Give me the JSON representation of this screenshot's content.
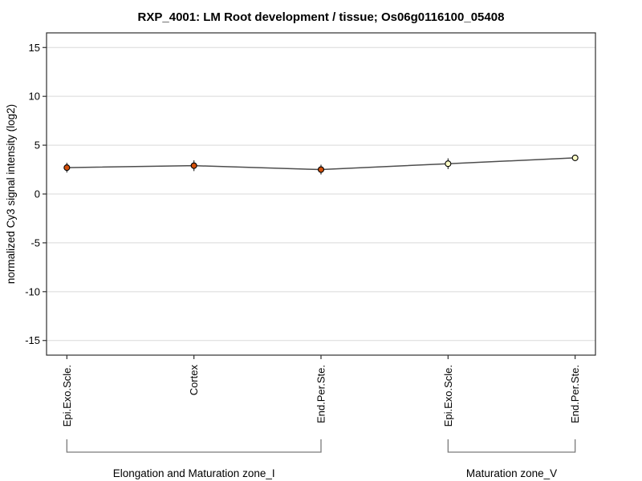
{
  "chart_data": {
    "type": "line",
    "title": "RXP_4001: LM Root development / tissue; Os06g0116100_05408",
    "ylabel": "normalized Cy3 signal intensity (log2)",
    "xlabel": "",
    "categories": [
      "Epi.Exo.Scle.",
      "Cortex",
      "End.Per.Ste.",
      "Epi.Exo.Scle.",
      "End.Per.Ste."
    ],
    "values": [
      2.7,
      2.9,
      2.5,
      3.1,
      3.7
    ],
    "errors": [
      0.5,
      0.55,
      0.5,
      0.55,
      0.15
    ],
    "point_fill_colors": [
      "#d4500a",
      "#d4500a",
      "#d4500a",
      "#ffffc8",
      "#ffffc8"
    ],
    "groups": [
      {
        "label": "Elongation and Maturation zone_I",
        "start": 0,
        "end": 2
      },
      {
        "label": "Maturation zone_V",
        "start": 3,
        "end": 4
      }
    ],
    "yticks": [
      15,
      10,
      5,
      0,
      -5,
      -10,
      -15
    ],
    "ylim": [
      -16.5,
      16.5
    ],
    "grid": true,
    "legend": "none",
    "colors": {
      "line": "#4d4d4d",
      "grid": "#d9d9d9",
      "box": "#2e2e2e",
      "tick": "#2e2e2e",
      "error_bar": "#2e2e2e",
      "point_stroke": "#000000",
      "bracket": "#7a7a7a",
      "text": "#000000",
      "background": "#ffffff"
    }
  }
}
